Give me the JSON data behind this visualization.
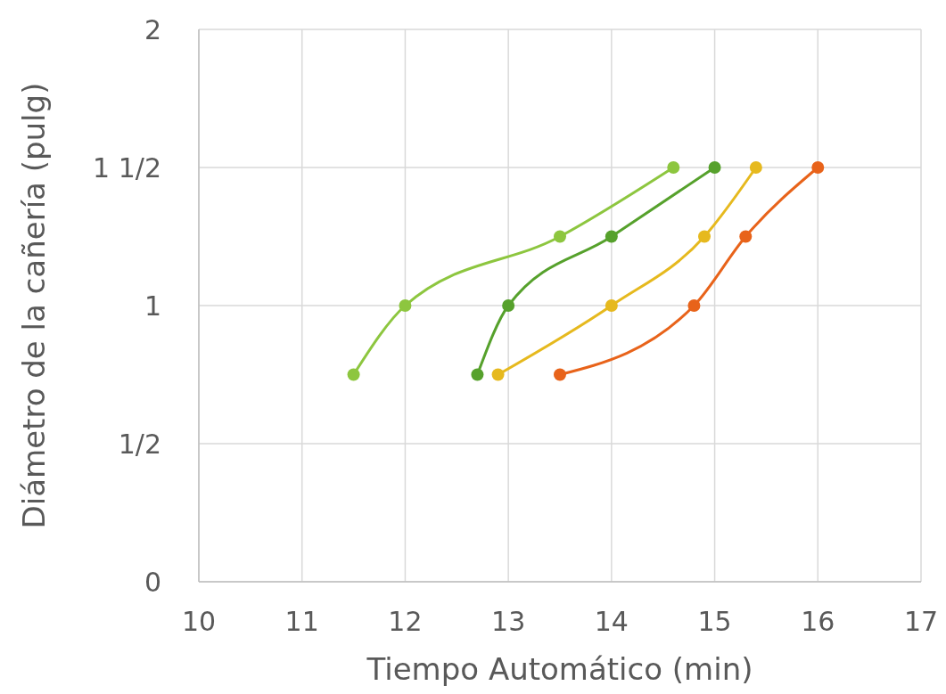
{
  "chart_data": {
    "type": "line",
    "xlabel": "Tiempo Automático (min)",
    "ylabel": "Diámetro de la cañería (pulg)",
    "xlim": [
      10,
      17
    ],
    "xticks": [
      10,
      11,
      12,
      13,
      14,
      15,
      16,
      17
    ],
    "ylim": [
      0,
      2
    ],
    "yticks": [
      0,
      {
        "value": 0.5,
        "label": "1/2"
      },
      1,
      {
        "value": 1.5,
        "label": "1 1/2"
      },
      2
    ],
    "grid": true,
    "marker": "circle",
    "line_style": "solid",
    "series": [
      {
        "color": "#8dc63f",
        "x": [
          11.5,
          12,
          13.5,
          14.6
        ],
        "values": [
          0.75,
          1,
          1.25,
          1.5
        ]
      },
      {
        "color": "#56a12c",
        "x": [
          12.7,
          13,
          14,
          15
        ],
        "values": [
          0.75,
          1,
          1.25,
          1.5
        ]
      },
      {
        "color": "#e6b91e",
        "x": [
          12.9,
          14,
          14.9,
          15.4
        ],
        "values": [
          0.75,
          1,
          1.25,
          1.5
        ]
      },
      {
        "color": "#e8631a",
        "x": [
          13.5,
          14.8,
          15.3,
          16
        ],
        "values": [
          0.75,
          1,
          1.25,
          1.5
        ]
      }
    ]
  }
}
